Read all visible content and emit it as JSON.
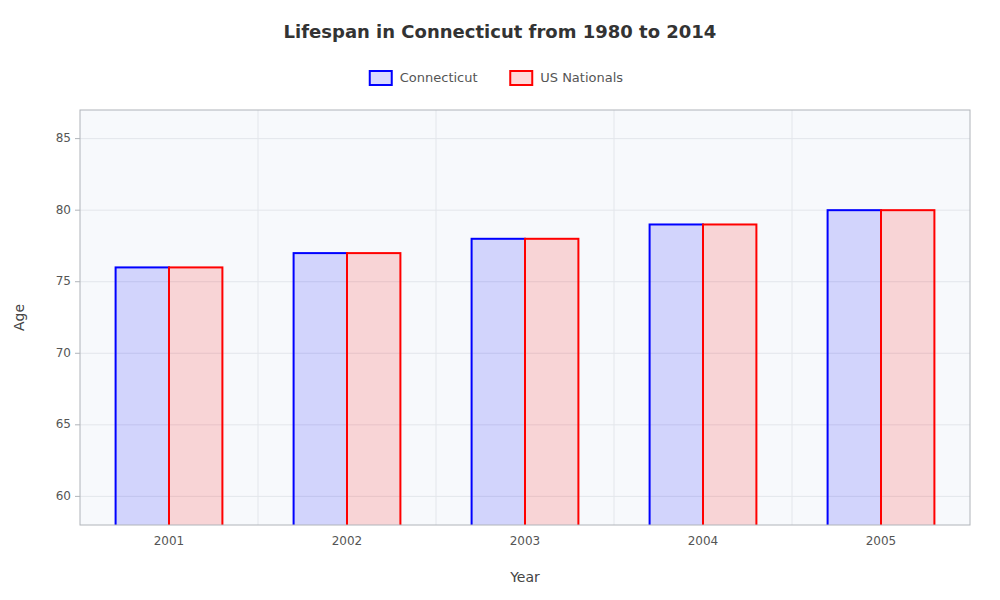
{
  "chart_data": {
    "type": "bar",
    "title": "Lifespan in Connecticut from 1980 to 2014",
    "xlabel": "Year",
    "ylabel": "Age",
    "categories": [
      "2001",
      "2002",
      "2003",
      "2004",
      "2005"
    ],
    "series": [
      {
        "name": "Connecticut",
        "color": "#0000ff",
        "values": [
          76,
          77,
          78,
          79,
          80
        ]
      },
      {
        "name": "US Nationals",
        "color": "#ff0000",
        "values": [
          76,
          77,
          78,
          79,
          80
        ]
      }
    ],
    "ylim": [
      58,
      87
    ],
    "yticks": [
      60,
      65,
      70,
      75,
      80,
      85
    ],
    "grid": true,
    "legend": "upper center"
  }
}
